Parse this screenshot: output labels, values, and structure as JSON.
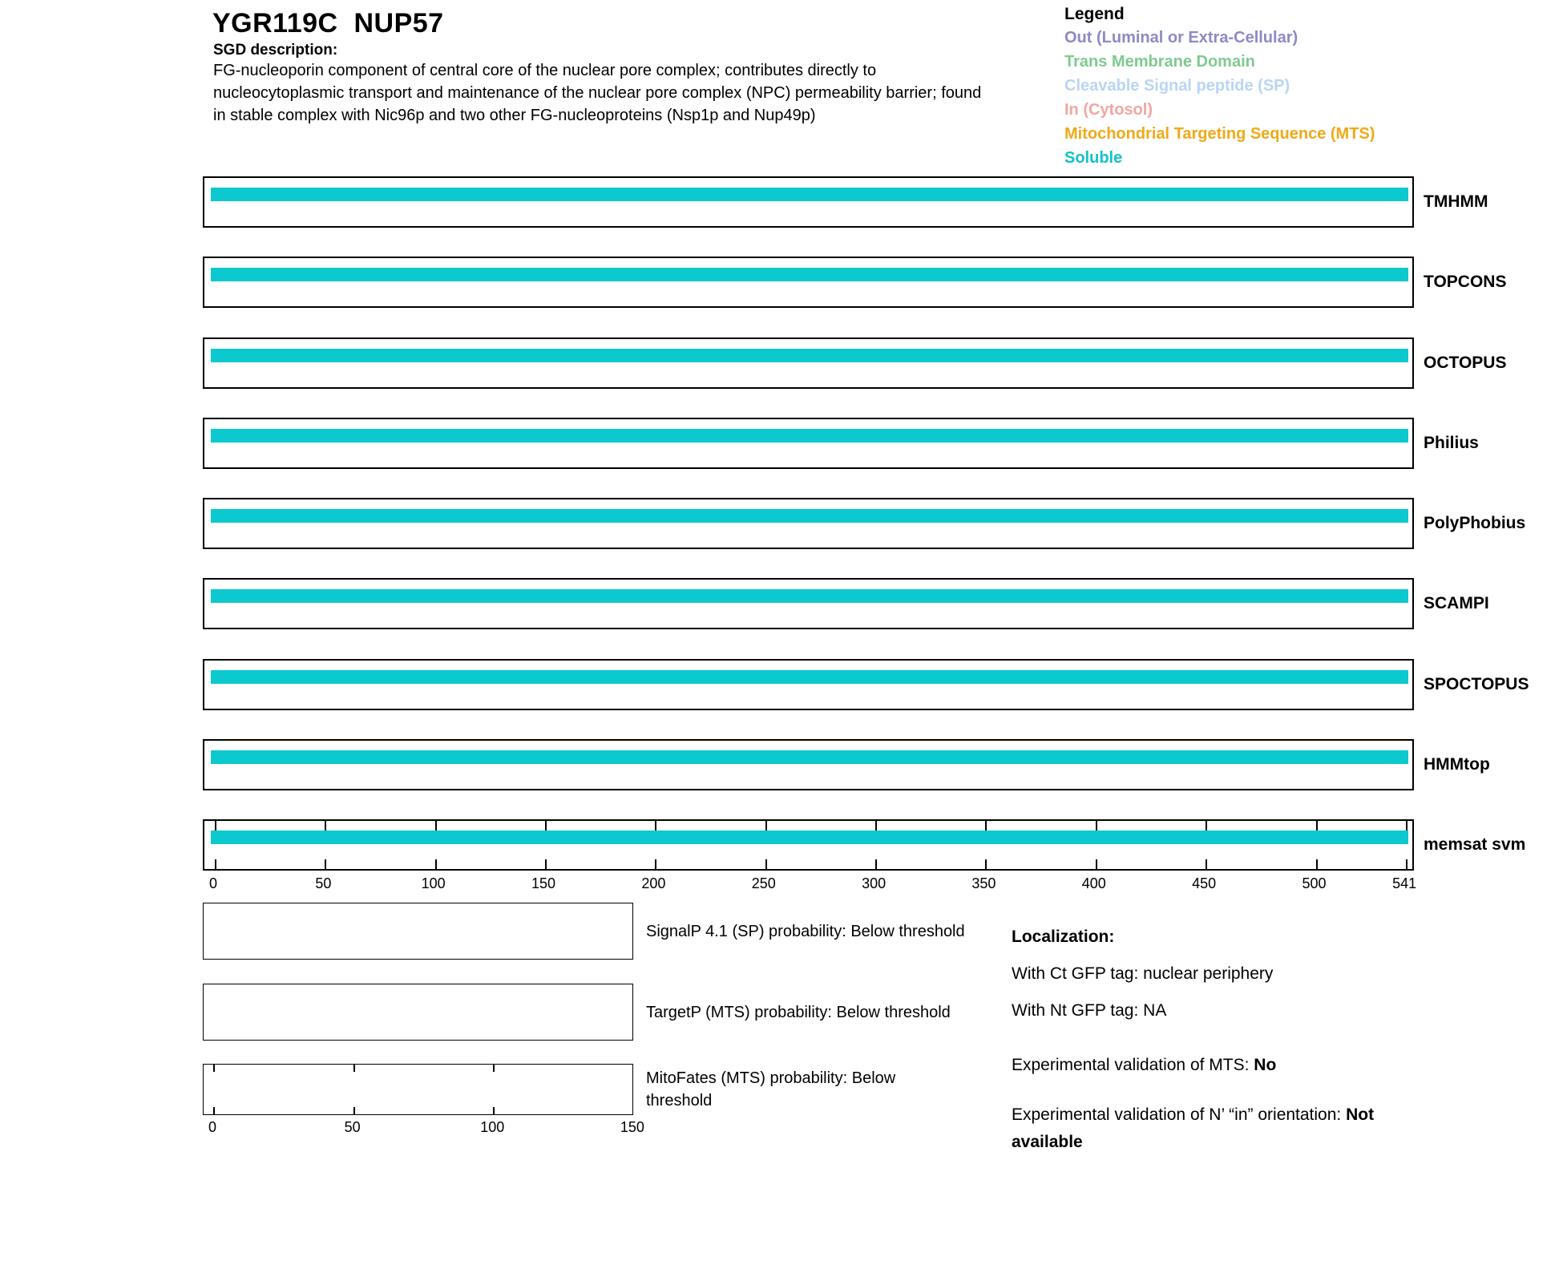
{
  "header": {
    "title": "YGR119C  NUP57",
    "sgd_label": "SGD description:",
    "description": "FG-nucleoporin component of central core of the nuclear pore complex; contributes directly to\nnucleocytoplasmic transport and maintenance of the nuclear pore complex (NPC) permeability barrier; found\nin stable complex with Nic96p and two other FG-nucleoproteins (Nsp1p and Nup49p)"
  },
  "legend": {
    "title": "Legend",
    "entries": [
      {
        "label": "Out (Luminal or Extra-Cellular)",
        "color": "#8d89c7"
      },
      {
        "label": "Trans Membrane Domain",
        "color": "#7fca90"
      },
      {
        "label": "Cleavable Signal peptide (SP)",
        "color": "#b9d5f3"
      },
      {
        "label": "In (Cytosol)",
        "color": "#f2a6a1"
      },
      {
        "label": "Mitochondrial Targeting Sequence (MTS)",
        "color": "#f0a918"
      },
      {
        "label": "Soluble",
        "color": "#11c2c8"
      }
    ]
  },
  "colors": {
    "soluble_bar": "#0bc9ce",
    "box_border": "#000000"
  },
  "tracks": {
    "labels": [
      "TMHMM",
      "TOPCONS",
      "OCTOPUS",
      "Philius",
      "PolyPhobius",
      "SCAMPI",
      "SPOCTOPUS",
      "HMMtop",
      "memsat svm"
    ],
    "axis": {
      "ticks": [
        0,
        50,
        100,
        150,
        200,
        250,
        300,
        350,
        400,
        450,
        500,
        541
      ],
      "min": 0,
      "max": 541
    }
  },
  "probability_plots": [
    {
      "label": "SignalP 4.1 (SP) probability: Below threshold"
    },
    {
      "label": "TargetP (MTS) probability: Below threshold"
    },
    {
      "label": "MitoFates (MTS) probability: Below threshold"
    }
  ],
  "mito_axis": {
    "ticks": [
      0,
      50,
      100,
      150
    ]
  },
  "annotations": {
    "localization_title": "Localization:",
    "ct_line": "With Ct GFP tag: nuclear periphery",
    "nt_line": "With Nt GFP tag: NA",
    "mts_label": "Experimental validation of MTS: ",
    "mts_value": "No",
    "orientation_label": "Experimental validation of N’ “in” orientation: ",
    "orientation_value": "Not available"
  },
  "chart_data": [
    {
      "type": "bar",
      "title": "",
      "xlabel": "",
      "ylabel": "",
      "xlim": [
        0,
        541
      ],
      "xticks": [
        0,
        50,
        100,
        150,
        200,
        250,
        300,
        350,
        400,
        450,
        500,
        541
      ],
      "grid": false,
      "tracks": [
        {
          "name": "TMHMM",
          "segments": [
            {
              "start": 0,
              "end": 541,
              "class": "Soluble"
            }
          ]
        },
        {
          "name": "TOPCONS",
          "segments": [
            {
              "start": 0,
              "end": 541,
              "class": "Soluble"
            }
          ]
        },
        {
          "name": "OCTOPUS",
          "segments": [
            {
              "start": 0,
              "end": 541,
              "class": "Soluble"
            }
          ]
        },
        {
          "name": "Philius",
          "segments": [
            {
              "start": 0,
              "end": 541,
              "class": "Soluble"
            }
          ]
        },
        {
          "name": "PolyPhobius",
          "segments": [
            {
              "start": 0,
              "end": 541,
              "class": "Soluble"
            }
          ]
        },
        {
          "name": "SCAMPI",
          "segments": [
            {
              "start": 0,
              "end": 541,
              "class": "Soluble"
            }
          ]
        },
        {
          "name": "SPOCTOPUS",
          "segments": [
            {
              "start": 0,
              "end": 541,
              "class": "Soluble"
            }
          ]
        },
        {
          "name": "HMMtop",
          "segments": [
            {
              "start": 0,
              "end": 541,
              "class": "Soluble"
            }
          ]
        },
        {
          "name": "memsat svm",
          "segments": [
            {
              "start": 0,
              "end": 541,
              "class": "Soluble"
            }
          ]
        }
      ]
    },
    {
      "type": "line",
      "name": "SignalP 4.1 (SP) probability",
      "xlim": [
        0,
        150
      ],
      "xticks": [
        0,
        50,
        100
      ],
      "x": [],
      "values": [],
      "note": "Below threshold"
    },
    {
      "type": "line",
      "name": "TargetP (MTS) probability",
      "xlim": [
        0,
        150
      ],
      "xticks": [
        0,
        50,
        100
      ],
      "x": [],
      "values": [],
      "note": "Below threshold"
    },
    {
      "type": "line",
      "name": "MitoFates (MTS) probability",
      "xlim": [
        0,
        150
      ],
      "xticks": [
        0,
        50,
        100,
        150
      ],
      "x": [],
      "values": [],
      "note": "Below threshold"
    }
  ]
}
